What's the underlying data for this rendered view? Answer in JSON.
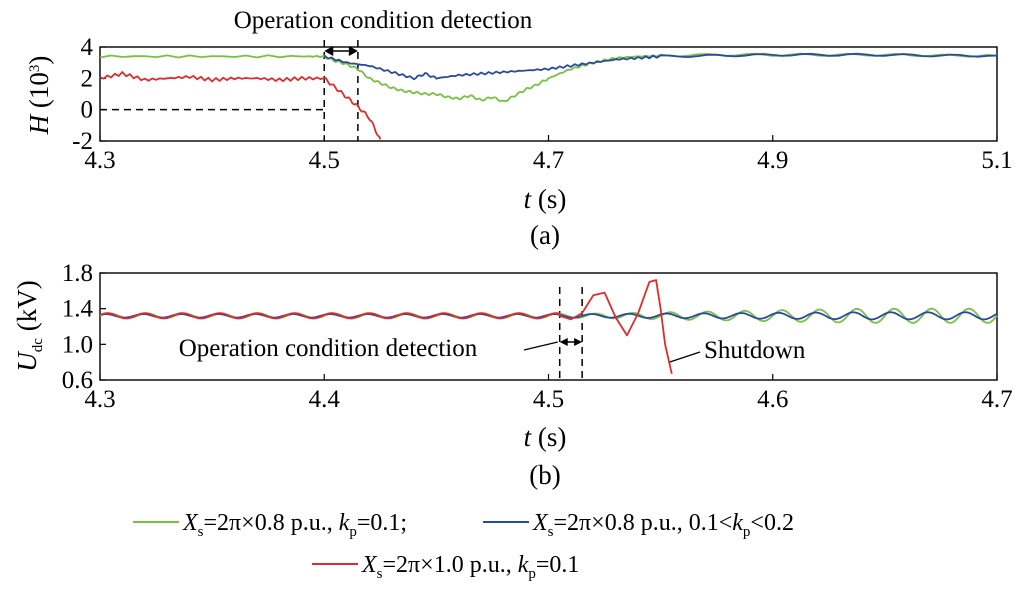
{
  "colors": {
    "green": "#79c142",
    "blue": "#2a4aa0",
    "red": "#de2c2c"
  },
  "chart_data": [
    {
      "type": "line",
      "subplot": "(a)",
      "xlabel_var": "t",
      "xlabel_unit": "(s)",
      "ylabel_var": "H",
      "ylabel_unit": "(10",
      "ylabel_sup": "3",
      "ylabel_close": ")",
      "xlim": [
        4.3,
        5.1
      ],
      "ylim": [
        -2,
        4
      ],
      "xticks": [
        "4.3",
        "4.5",
        "4.7",
        "4.9",
        "5.1"
      ],
      "yticks": [
        "4",
        "2",
        "0",
        "-2"
      ],
      "annotation": "Operation condition detection",
      "detection_window": [
        4.5,
        4.53
      ],
      "reference_level": 0,
      "series": [
        {
          "key": "green",
          "x": [
            4.3,
            4.36,
            4.42,
            4.48,
            4.5,
            4.51,
            4.52,
            4.53,
            4.54,
            4.55,
            4.56,
            4.57,
            4.58,
            4.59,
            4.6,
            4.61,
            4.62,
            4.63,
            4.64,
            4.65,
            4.66,
            4.67,
            4.68,
            4.69,
            4.7,
            4.72,
            4.74,
            4.76,
            4.78,
            4.8,
            4.85,
            4.9,
            4.95,
            5.0,
            5.05,
            5.1
          ],
          "y": [
            3.4,
            3.4,
            3.4,
            3.4,
            3.4,
            3.1,
            2.9,
            2.6,
            2.0,
            1.7,
            1.4,
            1.2,
            1.1,
            1.0,
            1.0,
            0.8,
            0.7,
            0.9,
            0.6,
            0.8,
            0.5,
            0.9,
            1.3,
            1.6,
            2.0,
            2.6,
            3.0,
            3.3,
            3.4,
            3.45,
            3.5,
            3.5,
            3.5,
            3.5,
            3.45,
            3.45
          ]
        },
        {
          "key": "blue",
          "x": [
            4.5,
            4.52,
            4.54,
            4.56,
            4.58,
            4.59,
            4.6,
            4.62,
            4.64,
            4.66,
            4.68,
            4.7,
            4.72,
            4.74,
            4.76,
            4.78,
            4.8,
            4.85,
            4.9,
            4.95,
            5.0,
            5.05,
            5.1
          ],
          "y": [
            3.4,
            3.0,
            2.8,
            2.4,
            2.0,
            2.3,
            2.0,
            2.2,
            2.3,
            2.4,
            2.5,
            2.6,
            2.8,
            3.0,
            3.2,
            3.3,
            3.4,
            3.45,
            3.5,
            3.5,
            3.5,
            3.45,
            3.45
          ]
        },
        {
          "key": "red",
          "x": [
            4.3,
            4.32,
            4.34,
            4.36,
            4.38,
            4.4,
            4.42,
            4.44,
            4.46,
            4.48,
            4.5,
            4.51,
            4.52,
            4.53,
            4.54,
            4.545,
            4.55
          ],
          "y": [
            2.0,
            2.3,
            1.9,
            2.0,
            2.1,
            1.9,
            2.0,
            2.0,
            1.9,
            2.0,
            2.0,
            1.4,
            0.8,
            0.2,
            -0.5,
            -1.2,
            -1.9
          ]
        }
      ]
    },
    {
      "type": "line",
      "subplot": "(b)",
      "xlabel_var": "t",
      "xlabel_unit": "(s)",
      "ylabel_var": "U",
      "ylabel_sub": "dc",
      "ylabel_unit": " (kV)",
      "xlim": [
        4.3,
        4.7
      ],
      "ylim": [
        0.6,
        1.8
      ],
      "xticks": [
        "4.3",
        "4.4",
        "4.5",
        "4.6",
        "4.7"
      ],
      "yticks": [
        "1.8",
        "1.4",
        "1.0",
        "0.6"
      ],
      "annotation": "Operation condition detection",
      "detection_window": [
        4.505,
        4.515
      ],
      "shutdown_label": "Shutdown",
      "shutdown_time": 4.555,
      "series": [
        {
          "key": "green",
          "oscillation": {
            "base": 1.32,
            "freq_hz": 60,
            "amp_start": 0.025,
            "t_growth": 4.52,
            "amp_end": 0.08
          }
        },
        {
          "key": "blue",
          "oscillation": {
            "base": 1.32,
            "freq_hz": 60,
            "amp_start": 0.02,
            "t_growth": 4.52,
            "amp_end": 0.04
          }
        },
        {
          "key": "red",
          "x": [
            4.3,
            4.505,
            4.51,
            4.515,
            4.52,
            4.525,
            4.53,
            4.535,
            4.54,
            4.545,
            4.548,
            4.55,
            4.552,
            4.555
          ],
          "y": [
            1.32,
            1.32,
            1.28,
            1.35,
            1.55,
            1.58,
            1.3,
            1.1,
            1.35,
            1.7,
            1.72,
            1.4,
            1.0,
            0.67
          ],
          "oscillation_until": 4.505,
          "amp": 0.03
        }
      ]
    }
  ],
  "legend": [
    {
      "key": "green",
      "parts": [
        [
          "X",
          "i"
        ],
        [
          "s",
          "sub"
        ],
        [
          "=2π×0.8 p.u., ",
          ""
        ],
        [
          "k",
          "i"
        ],
        [
          "p",
          "sub"
        ],
        [
          "=0.1;",
          ""
        ]
      ]
    },
    {
      "key": "blue",
      "parts": [
        [
          "X",
          "i"
        ],
        [
          "s",
          "sub"
        ],
        [
          "=2π×0.8 p.u., 0.1<",
          ""
        ],
        [
          "k",
          "i"
        ],
        [
          "p",
          "sub"
        ],
        [
          "<0.2",
          ""
        ]
      ]
    },
    {
      "key": "red",
      "parts": [
        [
          "X",
          "i"
        ],
        [
          "s",
          "sub"
        ],
        [
          "=2π×1.0 p.u., ",
          ""
        ],
        [
          "k",
          "i"
        ],
        [
          "p",
          "sub"
        ],
        [
          "=0.1",
          ""
        ]
      ]
    }
  ]
}
